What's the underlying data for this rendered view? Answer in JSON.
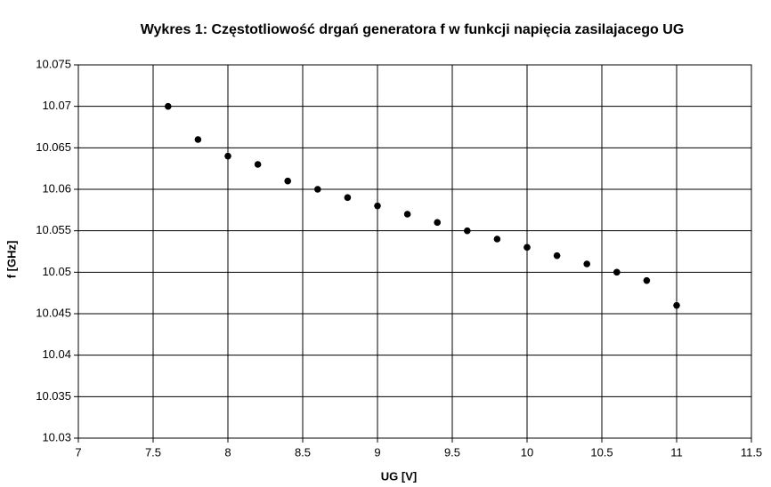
{
  "chart_data": {
    "type": "scatter",
    "title": "Wykres 1: Częstotliowość drgań generatora f w funkcji napięcia zasilajacego UG",
    "x_label": "UG [V]",
    "y_label": "f [GHz]",
    "x": [
      7.6,
      7.8,
      8.0,
      8.2,
      8.4,
      8.6,
      8.8,
      9.0,
      9.2,
      9.4,
      9.6,
      9.8,
      10.0,
      10.2,
      10.4,
      10.6,
      10.8,
      11.0
    ],
    "series": [
      {
        "color": "#000000",
        "values": [
          10.07,
          10.066,
          10.064,
          10.063,
          10.061,
          10.06,
          10.059,
          10.058,
          10.057,
          10.056,
          10.055,
          10.054,
          10.053,
          10.052,
          10.051,
          10.05,
          10.049,
          10.046
        ]
      }
    ],
    "xlim": [
      7,
      11.5
    ],
    "xticks": [
      7,
      7.5,
      8,
      8.5,
      9,
      9.5,
      10,
      10.5,
      11,
      11.5
    ],
    "ylim": [
      10.03,
      10.075
    ],
    "yticks": [
      10.03,
      10.035,
      10.04,
      10.045,
      10.05,
      10.055,
      10.06,
      10.065,
      10.07,
      10.075
    ],
    "grid": true
  }
}
